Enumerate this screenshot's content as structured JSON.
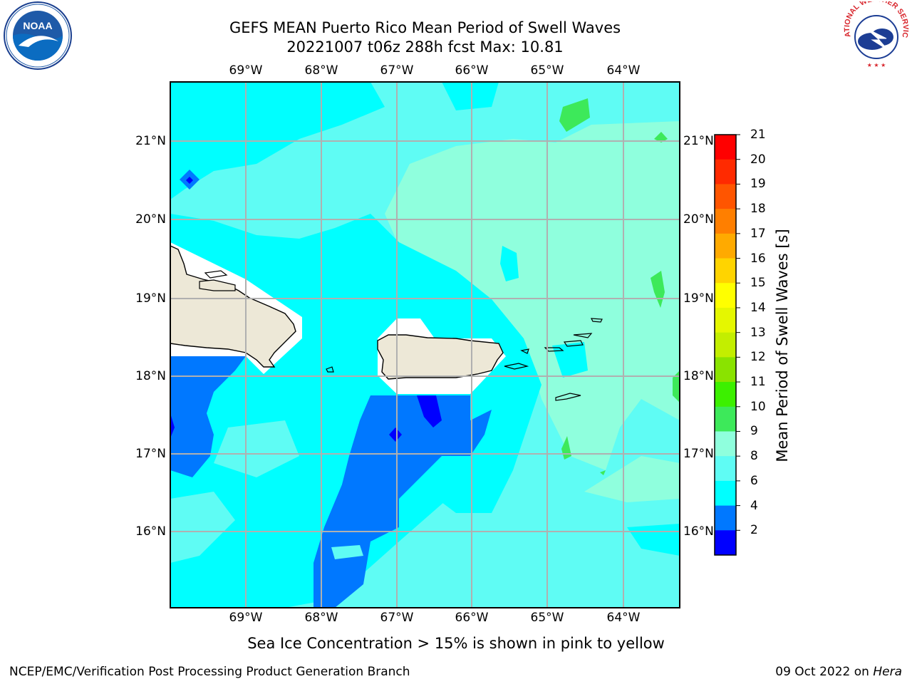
{
  "header": {
    "title_line1": "GEFS MEAN Puerto Rico Mean Period of Swell Waves",
    "title_line2": "20221007 t06z 288h fcst   Max: 10.81"
  },
  "map": {
    "lon_labels": [
      "69°W",
      "68°W",
      "67°W",
      "66°W",
      "65°W",
      "64°W"
    ],
    "lat_labels": [
      "21°N",
      "20°N",
      "19°N",
      "18°N",
      "17°N",
      "16°N"
    ]
  },
  "colorbar": {
    "label": "Mean Period of Swell Waves [s]",
    "ticks": [
      "21",
      "20",
      "19",
      "18",
      "17",
      "16",
      "15",
      "14",
      "13",
      "12",
      "11",
      "10",
      "9",
      "8",
      "6",
      "4",
      "2"
    ],
    "colors": [
      "#ff0000",
      "#ff2a00",
      "#ff5500",
      "#ff7f00",
      "#ffaa00",
      "#ffd400",
      "#ffff00",
      "#e5f700",
      "#c3ee00",
      "#8ae300",
      "#3cf000",
      "#3de95a",
      "#8fffdd",
      "#5ffcf4",
      "#00ffff",
      "#0078ff",
      "#0000ff"
    ]
  },
  "legend_values": {
    "min": 2,
    "max": 21,
    "field_max": 10.81
  },
  "footnote": "Sea Ice Concentration > 15% is shown in pink to yellow",
  "footer": {
    "left": "NCEP/EMC/Verification Post Processing Product Generation Branch",
    "right_date": "09 Oct 2022 on",
    "right_host": "Hera"
  },
  "logos": {
    "left": "NOAA",
    "right_text": "NATIONAL WEATHER SERVICE"
  }
}
